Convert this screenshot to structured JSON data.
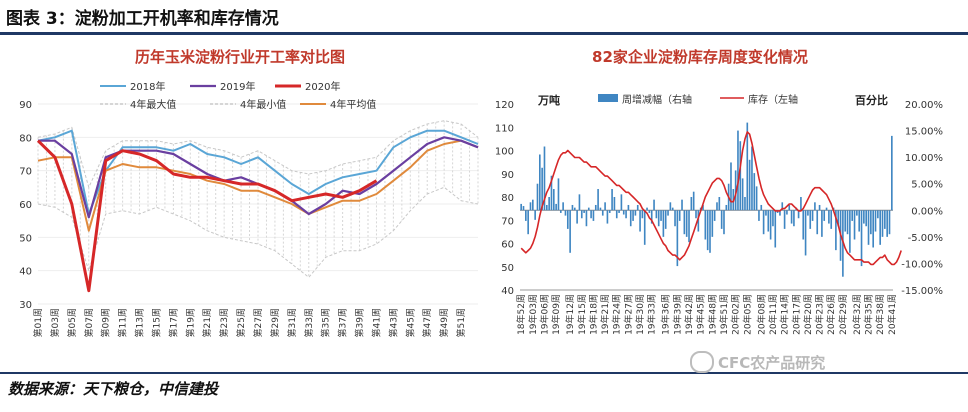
{
  "figure": {
    "title": "图表 3：淀粉加工开机率和库存情况",
    "source": "数据来源：天下粮仓，中信建投",
    "watermark": "CFC农产品研究"
  },
  "colors": {
    "rule": "#1f3864",
    "y2018": "#5aa6d6",
    "y2019": "#6a3fa0",
    "y2020": "#d62728",
    "avg": "#e08a3c",
    "bars": "#3f86c2",
    "inventory": "#d62728"
  },
  "chart_data": [
    {
      "type": "line",
      "title": "历年玉米淀粉行业开工率对比图",
      "ylim": [
        30,
        90
      ],
      "yticks": [
        30,
        40,
        50,
        60,
        70,
        80,
        90
      ],
      "xticks": [
        "第01周",
        "第03周",
        "第05周",
        "第07周",
        "第09周",
        "第11周",
        "第13周",
        "第15周",
        "第17周",
        "第19周",
        "第21周",
        "第23周",
        "第25周",
        "第27周",
        "第29周",
        "第31周",
        "第33周",
        "第35周",
        "第37周",
        "第39周",
        "第41周",
        "第43周",
        "第45周",
        "第47周",
        "第49周",
        "第51周"
      ],
      "x": [
        1,
        3,
        5,
        7,
        9,
        11,
        13,
        15,
        17,
        19,
        21,
        23,
        25,
        27,
        29,
        31,
        33,
        35,
        37,
        39,
        41,
        43,
        45,
        47,
        49,
        51,
        53
      ],
      "legend": [
        "2018年",
        "2019年",
        "2020年",
        "4年最大值",
        "4年最小值",
        "4年平均值"
      ],
      "series": [
        {
          "name": "2018年",
          "values": [
            79,
            80,
            82,
            57,
            70,
            77,
            77,
            77,
            76,
            78,
            75,
            74,
            72,
            74,
            70,
            66,
            63,
            66,
            68,
            69,
            70,
            77,
            80,
            82,
            82,
            80,
            78
          ]
        },
        {
          "name": "2019年",
          "values": [
            79,
            79,
            75,
            56,
            74,
            76,
            76,
            76,
            75,
            72,
            69,
            67,
            68,
            66,
            64,
            61,
            57,
            60,
            64,
            63,
            66,
            70,
            74,
            78,
            80,
            79,
            77
          ]
        },
        {
          "name": "2020年",
          "values": [
            79,
            74,
            60,
            34,
            73,
            76,
            75,
            73,
            69,
            68,
            68,
            67,
            66,
            66,
            64,
            61,
            62,
            63,
            62,
            64,
            67,
            null,
            null,
            null,
            null,
            null,
            null
          ]
        },
        {
          "name": "4年最大值",
          "values": [
            80,
            81,
            83,
            65,
            76,
            79,
            79,
            79,
            78,
            79,
            77,
            76,
            74,
            76,
            73,
            70,
            69,
            70,
            72,
            73,
            74,
            79,
            82,
            84,
            85,
            84,
            80
          ]
        },
        {
          "name": "4年最小值",
          "values": [
            60,
            59,
            56,
            40,
            57,
            58,
            57,
            59,
            57,
            55,
            52,
            50,
            49,
            48,
            46,
            42,
            38,
            44,
            46,
            46,
            48,
            52,
            58,
            63,
            65,
            61,
            60
          ]
        },
        {
          "name": "4年平均值",
          "values": [
            73,
            74,
            74,
            52,
            70,
            72,
            71,
            71,
            70,
            69,
            67,
            66,
            64,
            64,
            62,
            60,
            57,
            59,
            61,
            61,
            63,
            67,
            71,
            76,
            78,
            79,
            77
          ]
        }
      ]
    },
    {
      "type": "bar",
      "title": "82家企业淀粉库存周度变化情况",
      "ylabel": "万吨",
      "y2label": "百分比",
      "ylim": [
        40,
        120
      ],
      "yticks": [
        40,
        50,
        60,
        70,
        80,
        90,
        100,
        110,
        120
      ],
      "y2lim": [
        -15,
        20
      ],
      "y2ticks": [
        "-15.00%",
        "-10.00%",
        "-5.00%",
        "0.00%",
        "5.00%",
        "10.00%",
        "15.00%",
        "20.00%"
      ],
      "xticks": [
        "18年52周",
        "19年03周",
        "19年06周",
        "19年09周",
        "19年12周",
        "19年15周",
        "19年18周",
        "19年21周",
        "19年24周",
        "19年27周",
        "19年30周",
        "19年33周",
        "19年36周",
        "19年39周",
        "19年42周",
        "19年45周",
        "19年48周",
        "19年51周",
        "20年02周",
        "20年05周",
        "20年08周",
        "20年11周",
        "20年14周",
        "20年17周",
        "20年20周",
        "20年23周",
        "20年26周",
        "20年29周",
        "20年32周",
        "20年35周",
        "20年38周",
        "20年41周"
      ],
      "legend": [
        "周增减幅（右轴",
        "库存（左轴"
      ],
      "series": [
        {
          "name": "周增减幅（右轴",
          "axis": "right",
          "values": [
            1.2,
            0.8,
            -2.0,
            -4.5,
            1.5,
            2.0,
            -1.8,
            5.0,
            10.5,
            8.0,
            12.0,
            1.0,
            2.5,
            6.5,
            4.0,
            1.2,
            6.0,
            -0.5,
            1.5,
            -1.0,
            -3.5,
            -8.0,
            1.0,
            0.5,
            -2.5,
            3.0,
            -1.5,
            -0.5,
            -3.0,
            0.5,
            -1.5,
            -2.0,
            1.0,
            4.0,
            0.5,
            -1.0,
            1.5,
            -2.5,
            -0.5,
            4.0,
            2.5,
            -1.5,
            -0.5,
            3.0,
            -0.8,
            -1.5,
            1.0,
            -3.0,
            -2.0,
            -1.0,
            1.0,
            -4.0,
            -1.5,
            -6.5,
            0.5,
            -0.5,
            -2.5,
            2.0,
            -1.5,
            -3.0,
            -2.0,
            -5.0,
            -3.5,
            -1.0,
            1.5,
            0.5,
            -3.0,
            -10.5,
            -2.0,
            2.0,
            -4.5,
            -5.0,
            -6.0,
            2.5,
            3.5,
            -1.5,
            -4.0,
            0.5,
            1.0,
            -5.5,
            -7.5,
            -8.0,
            -5.0,
            -2.0,
            1.5,
            2.5,
            -3.5,
            -4.5,
            1.0,
            5.0,
            9.0,
            4.0,
            7.5,
            15.0,
            13.0,
            6.0,
            2.5,
            16.5,
            9.5,
            12.0,
            7.0,
            4.5,
            -2.0,
            1.0,
            -4.5,
            -1.0,
            -4.0,
            -5.5,
            -3.0,
            -7.0,
            -0.5,
            -1.0,
            1.5,
            -3.5,
            -0.8,
            1.0,
            -2.5,
            -3.0,
            0.5,
            -1.5,
            2.5,
            -5.5,
            -8.5,
            -1.0,
            -3.5,
            -2.0,
            1.5,
            -4.5,
            1.0,
            -5.0,
            -2.0,
            0.5,
            -2.5,
            -3.5,
            0.5,
            -7.5,
            -3.0,
            -9.5,
            -12.5,
            -4.0,
            -4.5,
            -8.0,
            -2.0,
            -5.5,
            -1.0,
            -4.0,
            -10.5,
            -2.5,
            -3.0,
            -6.5,
            -4.5,
            -7.0,
            -4.0,
            -1.5,
            -6.5,
            -5.0,
            -3.5,
            -5.0,
            -4.5,
            14.0
          ]
        },
        {
          "name": "库存（左轴",
          "axis": "left",
          "values": [
            58,
            57,
            56,
            57,
            58,
            60,
            63,
            67,
            72,
            76,
            79,
            82,
            84,
            87,
            90,
            93,
            96,
            98,
            99,
            99,
            100,
            99,
            98,
            97,
            97,
            97,
            96,
            95,
            95,
            94,
            93,
            93,
            93,
            92,
            91,
            90,
            89,
            89,
            88,
            87,
            86,
            85,
            85,
            84,
            83,
            82,
            82,
            81,
            80,
            79,
            78,
            77,
            75,
            74,
            73,
            71,
            70,
            68,
            66,
            64,
            62,
            60,
            59,
            57,
            56,
            55,
            55,
            54,
            53,
            54,
            55,
            57,
            59,
            62,
            65,
            68,
            71,
            74,
            77,
            80,
            82,
            84,
            86,
            87,
            88,
            88,
            87,
            85,
            82,
            80,
            78,
            78,
            81,
            86,
            93,
            100,
            105,
            108,
            107,
            103,
            98,
            93,
            88,
            84,
            81,
            79,
            77,
            76,
            75,
            74,
            74,
            74,
            75,
            75,
            76,
            77,
            77,
            76,
            75,
            74,
            74,
            75,
            77,
            79,
            81,
            83,
            84,
            84,
            84,
            83,
            82,
            81,
            79,
            77,
            74,
            71,
            68,
            64,
            61,
            58,
            56,
            55,
            54,
            53,
            53,
            53,
            53,
            52,
            52,
            52,
            51,
            51,
            52,
            53,
            54,
            54,
            55,
            53,
            52,
            51,
            51,
            52,
            54,
            57
          ]
        }
      ]
    }
  ]
}
